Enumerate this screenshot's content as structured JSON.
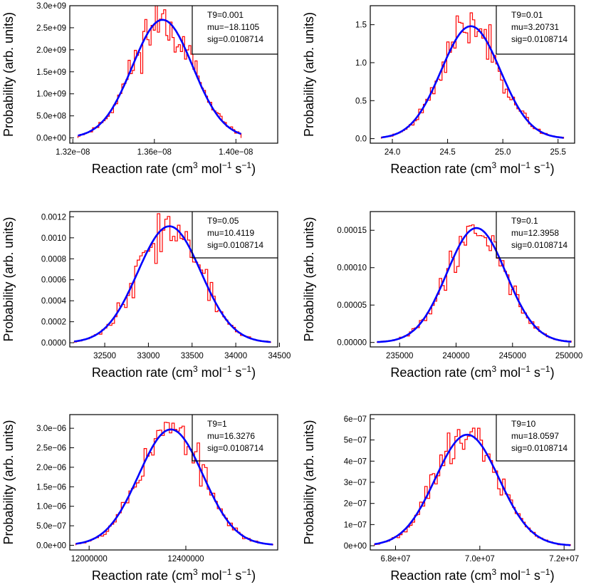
{
  "figure": {
    "background": "#ffffff",
    "histogram_color": "#ff0000",
    "fit_color": "#0000ff"
  },
  "chart_data": [
    {
      "type": "line",
      "xlabel_main": "Reaction rate (cm",
      "xlabel_sup1": "3",
      "xlabel_mid": " mol",
      "xlabel_sup2": "−1",
      "xlabel_mid2": " s",
      "xlabel_sup3": "−1",
      "xlabel_end": ")",
      "ylabel": "Probability (arb. units)",
      "stats": [
        "T9=0.001",
        "mu=−18.1105",
        "sig=0.0108714"
      ],
      "xlim": [
        1.3185e-08,
        1.4205e-08
      ],
      "ylim": [
        -120000000.0,
        3000000000.0
      ],
      "xticks": [
        1.32e-08,
        1.36e-08,
        1.4e-08
      ],
      "xtick_labels": [
        "1.32e−08",
        "1.36e−08",
        "1.40e−08"
      ],
      "yticks": [
        0,
        500000000.0,
        1000000000.0,
        1500000000.0,
        2000000000.0,
        2500000000.0,
        3000000000.0
      ],
      "ytick_labels": [
        "0.0e+00",
        "5.0e+08",
        "1.0e+09",
        "1.5e+09",
        "2.0e+09",
        "2.5e+09",
        "3.0e+09"
      ],
      "fit": {
        "mean": 1.364e-08,
        "sigma": 1.48e-10,
        "peak": 2680000000.0
      },
      "hist": {
        "range": [
          1.3225e-08,
          1.4025e-08
        ],
        "noise": 0.11,
        "seed": 11
      }
    },
    {
      "type": "line",
      "xlabel_main": "Reaction rate (cm",
      "xlabel_sup1": "3",
      "xlabel_mid": " mol",
      "xlabel_sup2": "−1",
      "xlabel_mid2": " s",
      "xlabel_sup3": "−1",
      "xlabel_end": ")",
      "ylabel": "Probability (arb. units)",
      "stats": [
        "T9=0.01",
        "mu=3.20731",
        "sig=0.0108714"
      ],
      "xlim": [
        23.8,
        25.65
      ],
      "ylim": [
        -0.06,
        1.75
      ],
      "xticks": [
        24.0,
        24.5,
        25.0,
        25.5
      ],
      "xtick_labels": [
        "24.0",
        "24.5",
        "25.0",
        "25.5"
      ],
      "yticks": [
        0,
        0.5,
        1.0,
        1.5
      ],
      "ytick_labels": [
        "0.0",
        "0.5",
        "1.0",
        "1.5"
      ],
      "fit": {
        "mean": 24.71,
        "sigma": 0.268,
        "peak": 1.48
      },
      "hist": {
        "range": [
          23.9,
          25.55
        ],
        "noise": 0.1,
        "seed": 23
      }
    },
    {
      "type": "line",
      "xlabel_main": "Reaction rate (cm",
      "xlabel_sup1": "3",
      "xlabel_mid": " mol",
      "xlabel_sup2": "−1",
      "xlabel_mid2": " s",
      "xlabel_sup3": "−1",
      "xlabel_end": ")",
      "ylabel": "Probability (arb. units)",
      "stats": [
        "T9=0.05",
        "mu=10.4119",
        "sig=0.0108714"
      ],
      "xlim": [
        32100,
        34480
      ],
      "ylim": [
        -4e-05,
        0.00125
      ],
      "xticks": [
        32500,
        33000,
        33500,
        34000,
        34500
      ],
      "xtick_labels": [
        "32500",
        "33000",
        "33500",
        "34000",
        "34500"
      ],
      "yticks": [
        0,
        0.0002,
        0.0004,
        0.0006,
        0.0008,
        0.001,
        0.0012
      ],
      "ytick_labels": [
        "0.0000",
        "0.0002",
        "0.0004",
        "0.0006",
        "0.0008",
        "0.0010",
        "0.0012"
      ],
      "fit": {
        "mean": 33240,
        "sigma": 362,
        "peak": 0.00111
      },
      "hist": {
        "range": [
          32150,
          34400
        ],
        "noise": 0.12,
        "seed": 37
      }
    },
    {
      "type": "line",
      "xlabel_main": "Reaction rate (cm",
      "xlabel_sup1": "3",
      "xlabel_mid": " mol",
      "xlabel_sup2": "−1",
      "xlabel_mid2": " s",
      "xlabel_sup3": "−1",
      "xlabel_end": ")",
      "ylabel": "Probability (arb. units)",
      "stats": [
        "T9=0.1",
        "mu=12.3958",
        "sig=0.0108714"
      ],
      "xlim": [
        232400,
        250500
      ],
      "ylim": [
        -6e-06,
        0.000175
      ],
      "xticks": [
        235000,
        240000,
        245000,
        250000
      ],
      "xtick_labels": [
        "235000",
        "240000",
        "245000",
        "250000"
      ],
      "yticks": [
        0,
        5e-05,
        0.0001,
        0.00015
      ],
      "ytick_labels": [
        "0.00000",
        "0.00005",
        "0.00010",
        "0.00015"
      ],
      "fit": {
        "mean": 241800,
        "sigma": 2620,
        "peak": 0.000153
      },
      "hist": {
        "range": [
          233000,
          250200
        ],
        "noise": 0.1,
        "seed": 41
      }
    },
    {
      "type": "line",
      "xlabel_main": "Reaction rate (cm",
      "xlabel_sup1": "3",
      "xlabel_mid": " mol",
      "xlabel_sup2": "−1",
      "xlabel_mid2": " s",
      "xlabel_sup3": "−1",
      "xlabel_end": ")",
      "ylabel": "Probability (arb. units)",
      "stats": [
        "T9=1",
        "mu=16.3276",
        "sig=0.0108714"
      ],
      "xlim": [
        11920000,
        12780000
      ],
      "ylim": [
        -1.2e-07,
        3.35e-06
      ],
      "xticks": [
        12000000,
        12400000
      ],
      "xtick_labels": [
        "12000000",
        "12400000"
      ],
      "yticks": [
        0,
        5e-07,
        1e-06,
        1.5e-06,
        2e-06,
        2.5e-06,
        3e-06
      ],
      "ytick_labels": [
        "0.0e+00",
        "5.0e−07",
        "1.0e−06",
        "1.5e−06",
        "2.0e−06",
        "2.5e−06",
        "3.0e−06"
      ],
      "fit": {
        "mean": 12338000,
        "sigma": 133000,
        "peak": 2.97e-06
      },
      "hist": {
        "range": [
          11945000,
          12760000
        ],
        "noise": 0.11,
        "seed": 53
      }
    },
    {
      "type": "line",
      "xlabel_main": "Reaction rate (cm",
      "xlabel_sup1": "3",
      "xlabel_mid": " mol",
      "xlabel_sup2": "−1",
      "xlabel_mid2": " s",
      "xlabel_sup3": "−1",
      "xlabel_end": ")",
      "ylabel": "Probability (arb. units)",
      "stats": [
        "T9=10",
        "mu=18.0597",
        "sig=0.0108714"
      ],
      "xlim": [
        67400000,
        72250000
      ],
      "ylim": [
        -2e-08,
        6.2e-07
      ],
      "xticks": [
        68000000,
        70000000,
        72000000
      ],
      "xtick_labels": [
        "6.8e+07",
        "7.0e+07",
        "7.2e+07"
      ],
      "yticks": [
        0,
        1e-07,
        2e-07,
        3e-07,
        4e-07,
        5e-07,
        6e-07
      ],
      "ytick_labels": [
        "0e+00",
        "1e−07",
        "2e−07",
        "3e−07",
        "4e−07",
        "5e−07",
        "6e−07"
      ],
      "fit": {
        "mean": 69700000,
        "sigma": 755000,
        "peak": 5.25e-07
      },
      "hist": {
        "range": [
          67500000,
          72150000
        ],
        "noise": 0.11,
        "seed": 67
      }
    }
  ]
}
